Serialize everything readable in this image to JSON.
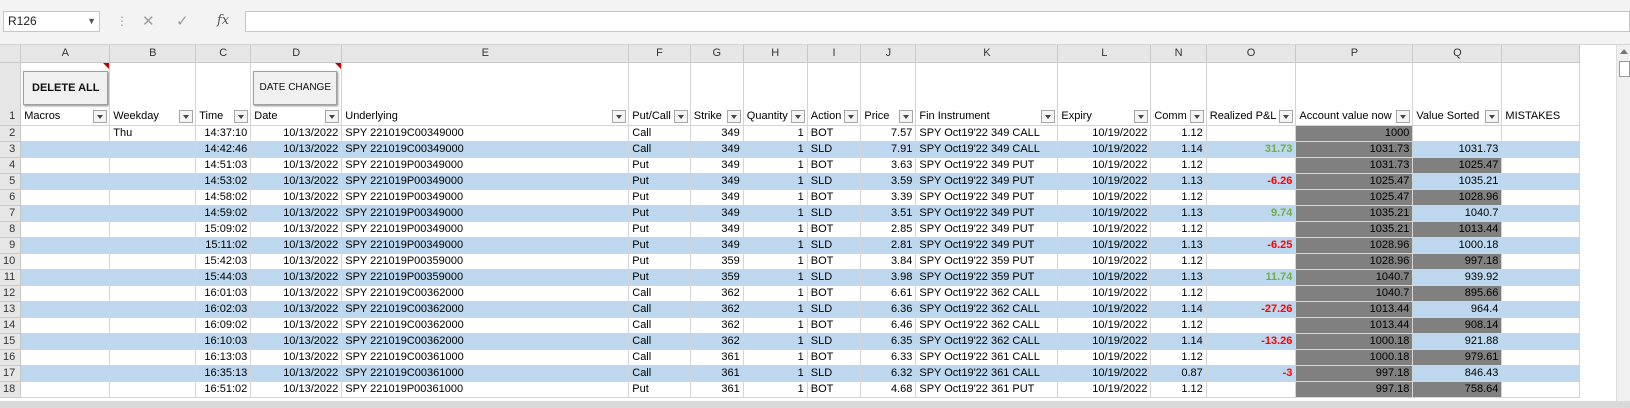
{
  "formula_bar": {
    "name_box": "R126",
    "formula": ""
  },
  "columns": [
    "",
    "A",
    "B",
    "C",
    "D",
    "E",
    "F",
    "G",
    "H",
    "I",
    "J",
    "K",
    "L",
    "N",
    "O",
    "P",
    "Q",
    ""
  ],
  "buttons": {
    "delete_all": "DELETE ALL",
    "date_change": "DATE CHANGE"
  },
  "headers": [
    "Macros",
    "Weekday",
    "Time",
    "Date",
    "Underlying",
    "Put/Call",
    "Strike",
    "Quantity",
    "Action",
    "Price",
    "Fin Instrument",
    "Expiry",
    "Comm",
    "Realized P&L",
    "Account value now",
    "Value Sorted",
    "MISTAKES"
  ],
  "header_row_number": "1",
  "rows": [
    {
      "n": "2",
      "macro": "",
      "weekday": "Thu",
      "time": "14:37:10",
      "date": "10/13/2022",
      "underlying": "SPY   221019C00349000",
      "pc": "Call",
      "strike": "349",
      "qty": "1",
      "action": "BOT",
      "price": "7.57",
      "fin": "SPY Oct19'22 349 CALL",
      "expiry": "10/19/2022",
      "comm": "1.12",
      "pnl": "",
      "acct": "1000",
      "sorted": "",
      "mist": ""
    },
    {
      "n": "3",
      "macro": "",
      "weekday": "",
      "time": "14:42:46",
      "date": "10/13/2022",
      "underlying": "SPY   221019C00349000",
      "pc": "Call",
      "strike": "349",
      "qty": "1",
      "action": "SLD",
      "price": "7.91",
      "fin": "SPY Oct19'22 349 CALL",
      "expiry": "10/19/2022",
      "comm": "1.14",
      "pnl": "31.73",
      "acct": "1031.73",
      "sorted": "1031.73",
      "mist": ""
    },
    {
      "n": "4",
      "macro": "",
      "weekday": "",
      "time": "14:51:03",
      "date": "10/13/2022",
      "underlying": "SPY   221019P00349000",
      "pc": "Put",
      "strike": "349",
      "qty": "1",
      "action": "BOT",
      "price": "3.63",
      "fin": "SPY Oct19'22 349 PUT",
      "expiry": "10/19/2022",
      "comm": "1.12",
      "pnl": "",
      "acct": "1031.73",
      "sorted": "1025.47",
      "mist": ""
    },
    {
      "n": "5",
      "macro": "",
      "weekday": "",
      "time": "14:53:02",
      "date": "10/13/2022",
      "underlying": "SPY   221019P00349000",
      "pc": "Put",
      "strike": "349",
      "qty": "1",
      "action": "SLD",
      "price": "3.59",
      "fin": "SPY Oct19'22 349 PUT",
      "expiry": "10/19/2022",
      "comm": "1.13",
      "pnl": "-6.26",
      "acct": "1025.47",
      "sorted": "1035.21",
      "mist": ""
    },
    {
      "n": "6",
      "macro": "",
      "weekday": "",
      "time": "14:58:02",
      "date": "10/13/2022",
      "underlying": "SPY   221019P00349000",
      "pc": "Put",
      "strike": "349",
      "qty": "1",
      "action": "BOT",
      "price": "3.39",
      "fin": "SPY Oct19'22 349 PUT",
      "expiry": "10/19/2022",
      "comm": "1.12",
      "pnl": "",
      "acct": "1025.47",
      "sorted": "1028.96",
      "mist": ""
    },
    {
      "n": "7",
      "macro": "",
      "weekday": "",
      "time": "14:59:02",
      "date": "10/13/2022",
      "underlying": "SPY   221019P00349000",
      "pc": "Put",
      "strike": "349",
      "qty": "1",
      "action": "SLD",
      "price": "3.51",
      "fin": "SPY Oct19'22 349 PUT",
      "expiry": "10/19/2022",
      "comm": "1.13",
      "pnl": "9.74",
      "acct": "1035.21",
      "sorted": "1040.7",
      "mist": ""
    },
    {
      "n": "8",
      "macro": "",
      "weekday": "",
      "time": "15:09:02",
      "date": "10/13/2022",
      "underlying": "SPY   221019P00349000",
      "pc": "Put",
      "strike": "349",
      "qty": "1",
      "action": "BOT",
      "price": "2.85",
      "fin": "SPY Oct19'22 349 PUT",
      "expiry": "10/19/2022",
      "comm": "1.12",
      "pnl": "",
      "acct": "1035.21",
      "sorted": "1013.44",
      "mist": ""
    },
    {
      "n": "9",
      "macro": "",
      "weekday": "",
      "time": "15:11:02",
      "date": "10/13/2022",
      "underlying": "SPY   221019P00349000",
      "pc": "Put",
      "strike": "349",
      "qty": "1",
      "action": "SLD",
      "price": "2.81",
      "fin": "SPY Oct19'22 349 PUT",
      "expiry": "10/19/2022",
      "comm": "1.13",
      "pnl": "-6.25",
      "acct": "1028.96",
      "sorted": "1000.18",
      "mist": ""
    },
    {
      "n": "10",
      "macro": "",
      "weekday": "",
      "time": "15:42:03",
      "date": "10/13/2022",
      "underlying": "SPY   221019P00359000",
      "pc": "Put",
      "strike": "359",
      "qty": "1",
      "action": "BOT",
      "price": "3.84",
      "fin": "SPY Oct19'22 359 PUT",
      "expiry": "10/19/2022",
      "comm": "1.12",
      "pnl": "",
      "acct": "1028.96",
      "sorted": "997.18",
      "mist": ""
    },
    {
      "n": "11",
      "macro": "",
      "weekday": "",
      "time": "15:44:03",
      "date": "10/13/2022",
      "underlying": "SPY   221019P00359000",
      "pc": "Put",
      "strike": "359",
      "qty": "1",
      "action": "SLD",
      "price": "3.98",
      "fin": "SPY Oct19'22 359 PUT",
      "expiry": "10/19/2022",
      "comm": "1.13",
      "pnl": "11.74",
      "acct": "1040.7",
      "sorted": "939.92",
      "mist": ""
    },
    {
      "n": "12",
      "macro": "",
      "weekday": "",
      "time": "16:01:03",
      "date": "10/13/2022",
      "underlying": "SPY   221019C00362000",
      "pc": "Call",
      "strike": "362",
      "qty": "1",
      "action": "BOT",
      "price": "6.61",
      "fin": "SPY Oct19'22 362 CALL",
      "expiry": "10/19/2022",
      "comm": "1.12",
      "pnl": "",
      "acct": "1040.7",
      "sorted": "895.66",
      "mist": ""
    },
    {
      "n": "13",
      "macro": "",
      "weekday": "",
      "time": "16:02:03",
      "date": "10/13/2022",
      "underlying": "SPY   221019C00362000",
      "pc": "Call",
      "strike": "362",
      "qty": "1",
      "action": "SLD",
      "price": "6.36",
      "fin": "SPY Oct19'22 362 CALL",
      "expiry": "10/19/2022",
      "comm": "1.14",
      "pnl": "-27.26",
      "acct": "1013.44",
      "sorted": "964.4",
      "mist": ""
    },
    {
      "n": "14",
      "macro": "",
      "weekday": "",
      "time": "16:09:02",
      "date": "10/13/2022",
      "underlying": "SPY   221019C00362000",
      "pc": "Call",
      "strike": "362",
      "qty": "1",
      "action": "BOT",
      "price": "6.46",
      "fin": "SPY Oct19'22 362 CALL",
      "expiry": "10/19/2022",
      "comm": "1.12",
      "pnl": "",
      "acct": "1013.44",
      "sorted": "908.14",
      "mist": ""
    },
    {
      "n": "15",
      "macro": "",
      "weekday": "",
      "time": "16:10:03",
      "date": "10/13/2022",
      "underlying": "SPY   221019C00362000",
      "pc": "Call",
      "strike": "362",
      "qty": "1",
      "action": "SLD",
      "price": "6.35",
      "fin": "SPY Oct19'22 362 CALL",
      "expiry": "10/19/2022",
      "comm": "1.14",
      "pnl": "-13.26",
      "acct": "1000.18",
      "sorted": "921.88",
      "mist": ""
    },
    {
      "n": "16",
      "macro": "",
      "weekday": "",
      "time": "16:13:03",
      "date": "10/13/2022",
      "underlying": "SPY   221019C00361000",
      "pc": "Call",
      "strike": "361",
      "qty": "1",
      "action": "BOT",
      "price": "6.33",
      "fin": "SPY Oct19'22 361 CALL",
      "expiry": "10/19/2022",
      "comm": "1.12",
      "pnl": "",
      "acct": "1000.18",
      "sorted": "979.61",
      "mist": ""
    },
    {
      "n": "17",
      "macro": "",
      "weekday": "",
      "time": "16:35:13",
      "date": "10/13/2022",
      "underlying": "SPY   221019C00361000",
      "pc": "Call",
      "strike": "361",
      "qty": "1",
      "action": "SLD",
      "price": "6.32",
      "fin": "SPY Oct19'22 361 CALL",
      "expiry": "10/19/2022",
      "comm": "0.87",
      "pnl": "-3",
      "acct": "997.18",
      "sorted": "846.43",
      "mist": ""
    },
    {
      "n": "18",
      "macro": "",
      "weekday": "",
      "time": "16:51:02",
      "date": "10/13/2022",
      "underlying": "SPY   221019P00361000",
      "pc": "Put",
      "strike": "361",
      "qty": "1",
      "action": "BOT",
      "price": "4.68",
      "fin": "SPY Oct19'22 361 PUT",
      "expiry": "10/19/2022",
      "comm": "1.12",
      "pnl": "",
      "acct": "997.18",
      "sorted": "758.64",
      "mist": ""
    }
  ],
  "colors": {
    "band": "#bdd7ee",
    "gray_cell": "#808080",
    "positive": "#70ad47",
    "negative": "#ff0000"
  }
}
